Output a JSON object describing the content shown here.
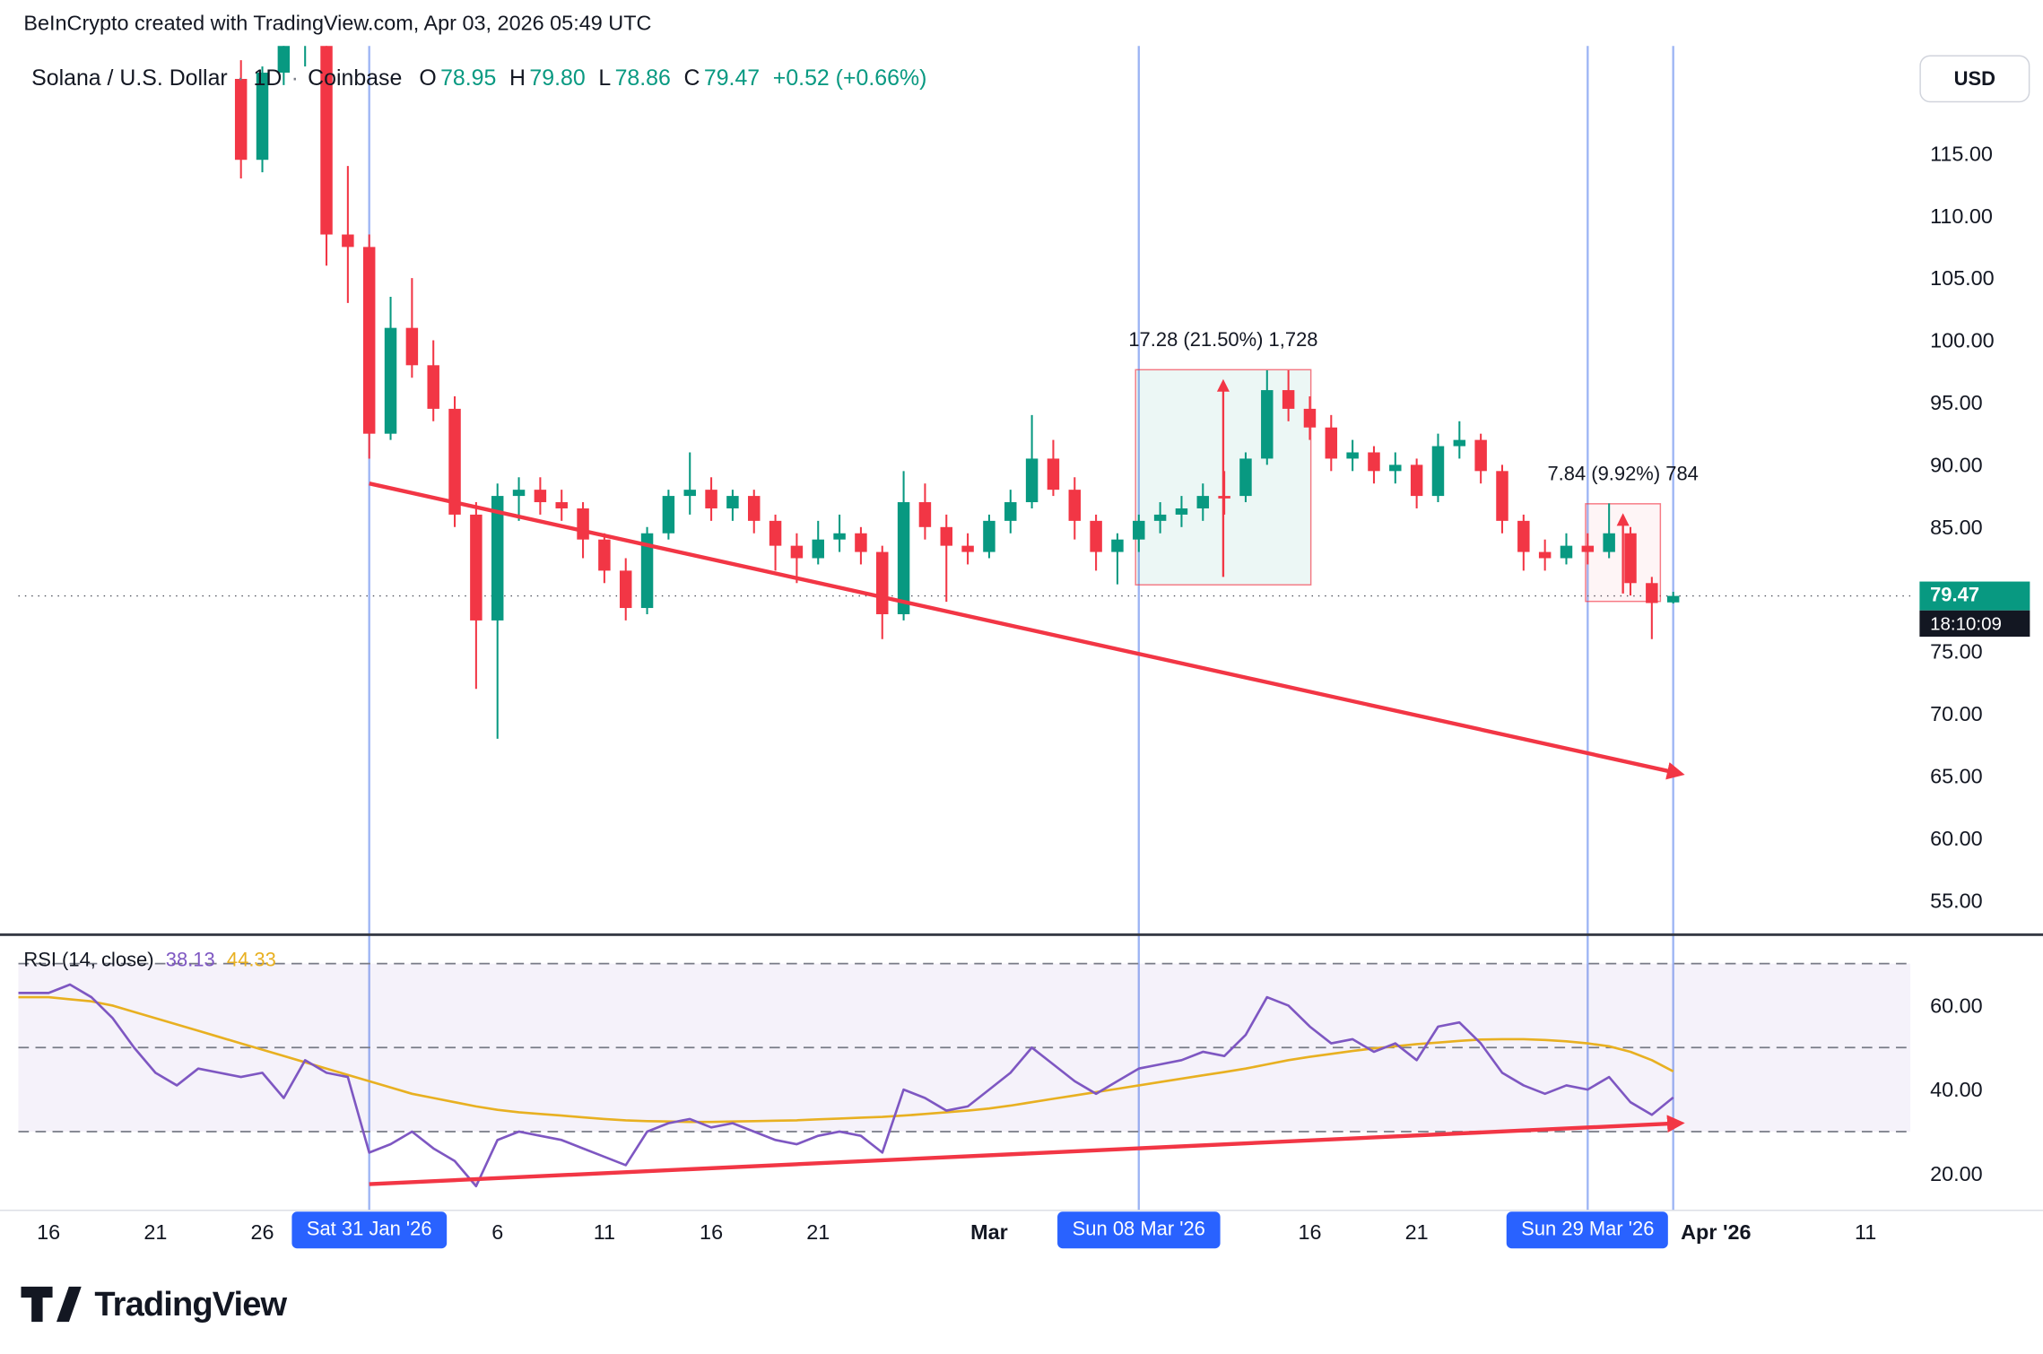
{
  "attribution": "BeInCrypto created with TradingView.com, Apr 03, 2026 05:49 UTC",
  "header": {
    "symbol": "Solana / U.S. Dollar",
    "separator": "·",
    "interval": "1D",
    "exchange": "Coinbase",
    "ohlc": {
      "o_label": "O",
      "o": "78.95",
      "h_label": "H",
      "h": "79.80",
      "l_label": "L",
      "l": "78.86",
      "c_label": "C",
      "c": "79.47",
      "change": "+0.52 (+0.66%)"
    }
  },
  "currency_button": "USD",
  "price_scale": {
    "labels": [
      {
        "value": "115.00",
        "price": 115
      },
      {
        "value": "110.00",
        "price": 110
      },
      {
        "value": "105.00",
        "price": 105
      },
      {
        "value": "100.00",
        "price": 100
      },
      {
        "value": "95.00",
        "price": 95
      },
      {
        "value": "90.00",
        "price": 90
      },
      {
        "value": "85.00",
        "price": 85
      },
      {
        "value": "75.00",
        "price": 75
      },
      {
        "value": "70.00",
        "price": 70
      },
      {
        "value": "65.00",
        "price": 65
      },
      {
        "value": "60.00",
        "price": 60
      },
      {
        "value": "55.00",
        "price": 55
      }
    ],
    "last_price": {
      "value": "79.47",
      "countdown": "18:10:09",
      "color": "#089981"
    }
  },
  "time_scale": {
    "ticks": [
      {
        "label": "16",
        "day": 0,
        "bold": false
      },
      {
        "label": "21",
        "day": 5,
        "bold": false
      },
      {
        "label": "26",
        "day": 10,
        "bold": false
      },
      {
        "label": "6",
        "day": 21,
        "bold": false
      },
      {
        "label": "11",
        "day": 26,
        "bold": false
      },
      {
        "label": "16",
        "day": 31,
        "bold": false
      },
      {
        "label": "21",
        "day": 36,
        "bold": false
      },
      {
        "label": "Mar",
        "day": 44,
        "bold": true
      },
      {
        "label": "16",
        "day": 59,
        "bold": false
      },
      {
        "label": "21",
        "day": 64,
        "bold": false
      },
      {
        "label": "Apr '26",
        "day": 78,
        "bold": true
      },
      {
        "label": "11",
        "day": 85,
        "bold": false
      }
    ],
    "date_badges": [
      {
        "label": "Sat 31 Jan '26",
        "day": 15
      },
      {
        "label": "Sun 08 Mar '26",
        "day": 51
      },
      {
        "label": "Sun 29 Mar '26",
        "day": 72
      }
    ]
  },
  "rsi_panel": {
    "legend_title": "RSI (14, close)",
    "rsi_value": "38.13",
    "ma_value": "44.33",
    "axis_labels": [
      {
        "value": "60.00",
        "v": 60
      },
      {
        "value": "40.00",
        "v": 40
      },
      {
        "value": "20.00",
        "v": 20
      }
    ]
  },
  "logo_text": "TradingView",
  "colors": {
    "up": "#089981",
    "down": "#f23645",
    "trend": "#f23645",
    "rsi_line": "#7E57C2",
    "rsi_ma_line": "#E8B021",
    "badge_blue": "#2962ff",
    "text": "#131722"
  },
  "chart_data": {
    "type": "candlestick",
    "title": "Solana / U.S. Dollar, 1D, Coinbase",
    "symbol": "SOL/USD",
    "interval": "1D",
    "note": "day index 0 = Jan 16 '26, one candle per day",
    "last_price": 79.47,
    "price_axis_range": [
      55,
      123
    ],
    "candles": [
      [
        9,
        121,
        122.5,
        113,
        114.5
      ],
      [
        10,
        114.5,
        122,
        113.5,
        121.5
      ],
      [
        11,
        121.5,
        126,
        120.5,
        125
      ],
      [
        12,
        125,
        128,
        122,
        126
      ],
      [
        13,
        126,
        126.5,
        106,
        108.5
      ],
      [
        14,
        108.5,
        114,
        103,
        107.5
      ],
      [
        15,
        107.5,
        108.5,
        90.5,
        92.5
      ],
      [
        16,
        92.5,
        103.5,
        92,
        101
      ],
      [
        17,
        101,
        105,
        97,
        98
      ],
      [
        18,
        98,
        100,
        93.5,
        94.5
      ],
      [
        19,
        94.5,
        95.5,
        85,
        86
      ],
      [
        20,
        86,
        87,
        72,
        77.5
      ],
      [
        21,
        77.5,
        88.5,
        68,
        87.5
      ],
      [
        22,
        87.5,
        89,
        85.5,
        88
      ],
      [
        23,
        88,
        89,
        86,
        87
      ],
      [
        24,
        87,
        88,
        85.5,
        86.5
      ],
      [
        25,
        86.5,
        87,
        82.5,
        84
      ],
      [
        26,
        84,
        84.5,
        80.5,
        81.5
      ],
      [
        27,
        81.5,
        82.5,
        77.5,
        78.5
      ],
      [
        28,
        78.5,
        85,
        78,
        84.5
      ],
      [
        29,
        84.5,
        88,
        84,
        87.5
      ],
      [
        30,
        87.5,
        91,
        86,
        88
      ],
      [
        31,
        88,
        89,
        85.5,
        86.5
      ],
      [
        32,
        86.5,
        88,
        85.5,
        87.5
      ],
      [
        33,
        87.5,
        88,
        84.5,
        85.5
      ],
      [
        34,
        85.5,
        86,
        81.5,
        83.5
      ],
      [
        35,
        83.5,
        84.5,
        80.5,
        82.5
      ],
      [
        36,
        82.5,
        85.5,
        82,
        84
      ],
      [
        37,
        84,
        86,
        83,
        84.5
      ],
      [
        38,
        84.5,
        85,
        82,
        83
      ],
      [
        39,
        83,
        83.5,
        76,
        78
      ],
      [
        40,
        78,
        89.5,
        77.5,
        87
      ],
      [
        41,
        87,
        88.5,
        84,
        85
      ],
      [
        42,
        85,
        86,
        79,
        83.5
      ],
      [
        43,
        83.5,
        84.5,
        82,
        83
      ],
      [
        44,
        83,
        86,
        82.5,
        85.5
      ],
      [
        45,
        85.5,
        88,
        84.5,
        87
      ],
      [
        46,
        87,
        94,
        86.5,
        90.5
      ],
      [
        47,
        90.5,
        92,
        87.5,
        88
      ],
      [
        48,
        88,
        89,
        84,
        85.5
      ],
      [
        49,
        85.5,
        86,
        81.5,
        83
      ],
      [
        50,
        83,
        84.5,
        80.4,
        84
      ],
      [
        51,
        84,
        86,
        83,
        85.5
      ],
      [
        52,
        85.5,
        87,
        84.5,
        86
      ],
      [
        53,
        86,
        87.5,
        85,
        86.5
      ],
      [
        54,
        86.5,
        88.5,
        85.5,
        87.5
      ],
      [
        55,
        87.5,
        89.5,
        86,
        87.3
      ],
      [
        56,
        87.5,
        91,
        87,
        90.5
      ],
      [
        57,
        90.5,
        97.6,
        90,
        96
      ],
      [
        58,
        96,
        97.6,
        93.5,
        94.5
      ],
      [
        59,
        94.5,
        95.5,
        92,
        93
      ],
      [
        60,
        93,
        94,
        89.5,
        90.5
      ],
      [
        61,
        90.5,
        92,
        89.5,
        91
      ],
      [
        62,
        91,
        91.5,
        88.5,
        89.5
      ],
      [
        63,
        89.5,
        91,
        88.5,
        90
      ],
      [
        64,
        90,
        90.5,
        86.5,
        87.5
      ],
      [
        65,
        87.5,
        92.5,
        87,
        91.5
      ],
      [
        66,
        91.5,
        93.5,
        90.5,
        92
      ],
      [
        67,
        92,
        92.5,
        88.5,
        89.5
      ],
      [
        68,
        89.5,
        90,
        84.5,
        85.5
      ],
      [
        69,
        85.5,
        86,
        81.5,
        83
      ],
      [
        70,
        83,
        84,
        81.5,
        82.5
      ],
      [
        71,
        82.5,
        84.5,
        82,
        83.5
      ],
      [
        72,
        83.5,
        84.5,
        82,
        83
      ],
      [
        73,
        83,
        86.9,
        82.5,
        84.5
      ],
      [
        74,
        84.5,
        85,
        79.5,
        80.5
      ],
      [
        75,
        80.5,
        81,
        76,
        78.9
      ],
      [
        76,
        78.95,
        79.8,
        78.86,
        79.47
      ]
    ],
    "rsi": [
      63,
      65,
      62,
      57,
      50,
      44,
      41,
      45,
      44,
      43,
      44,
      38,
      47,
      44,
      43,
      25,
      27,
      30,
      26,
      23,
      17,
      28,
      30,
      29,
      28,
      26,
      24,
      22,
      30,
      32,
      33,
      31,
      32,
      30,
      28,
      27,
      29,
      30,
      29,
      25,
      40,
      38,
      35,
      36,
      40,
      44,
      50,
      46,
      42,
      39,
      42,
      45,
      46,
      47,
      49,
      48,
      53,
      62,
      60,
      55,
      51,
      52,
      49,
      51,
      47,
      55,
      56,
      51,
      44,
      41,
      39,
      41,
      40,
      43,
      37,
      34,
      38.13
    ],
    "rsi_ma": [
      62,
      61.5,
      61,
      60,
      58.5,
      57,
      55.5,
      54,
      52.5,
      51,
      49.5,
      48,
      46.5,
      45,
      43.5,
      42,
      40.5,
      39,
      38,
      37,
      36,
      35.2,
      34.6,
      34.2,
      33.8,
      33.4,
      33,
      32.7,
      32.5,
      32.4,
      32.3,
      32.3,
      32.4,
      32.5,
      32.6,
      32.7,
      32.9,
      33.1,
      33.3,
      33.5,
      33.8,
      34.2,
      34.6,
      35,
      35.5,
      36.2,
      37,
      37.8,
      38.6,
      39.4,
      40.2,
      41,
      41.8,
      42.6,
      43.4,
      44.2,
      45,
      46,
      47,
      47.8,
      48.5,
      49.2,
      49.8,
      50.3,
      50.8,
      51.2,
      51.6,
      51.9,
      52,
      52,
      51.8,
      51.5,
      51,
      50.3,
      49,
      47,
      44.33
    ],
    "rsi_bands": [
      70,
      50,
      30
    ],
    "vlines_days": [
      15,
      51,
      72,
      76
    ],
    "measurements": [
      {
        "label": "17.28 (21.50%) 1,728",
        "day_start": 50.85,
        "day_end": 59.05,
        "price_low": 80.36,
        "price_high": 97.64,
        "arrow_day": 54.95,
        "fill": "rgba(8,153,129,0.08)"
      },
      {
        "label": "7.84 (9.92%) 784",
        "day_start": 71.9,
        "day_end": 75.4,
        "price_low": 79.03,
        "price_high": 86.87,
        "arrow_day": 73.65,
        "fill": "rgba(242,54,69,0.05)"
      }
    ],
    "price_trendline": {
      "day1": 15,
      "price1": 88.5,
      "day2": 76.3,
      "price2": 65.2
    },
    "rsi_trendline": {
      "day1": 15,
      "value1": 17.5,
      "day2": 76.3,
      "value2": 32
    }
  }
}
